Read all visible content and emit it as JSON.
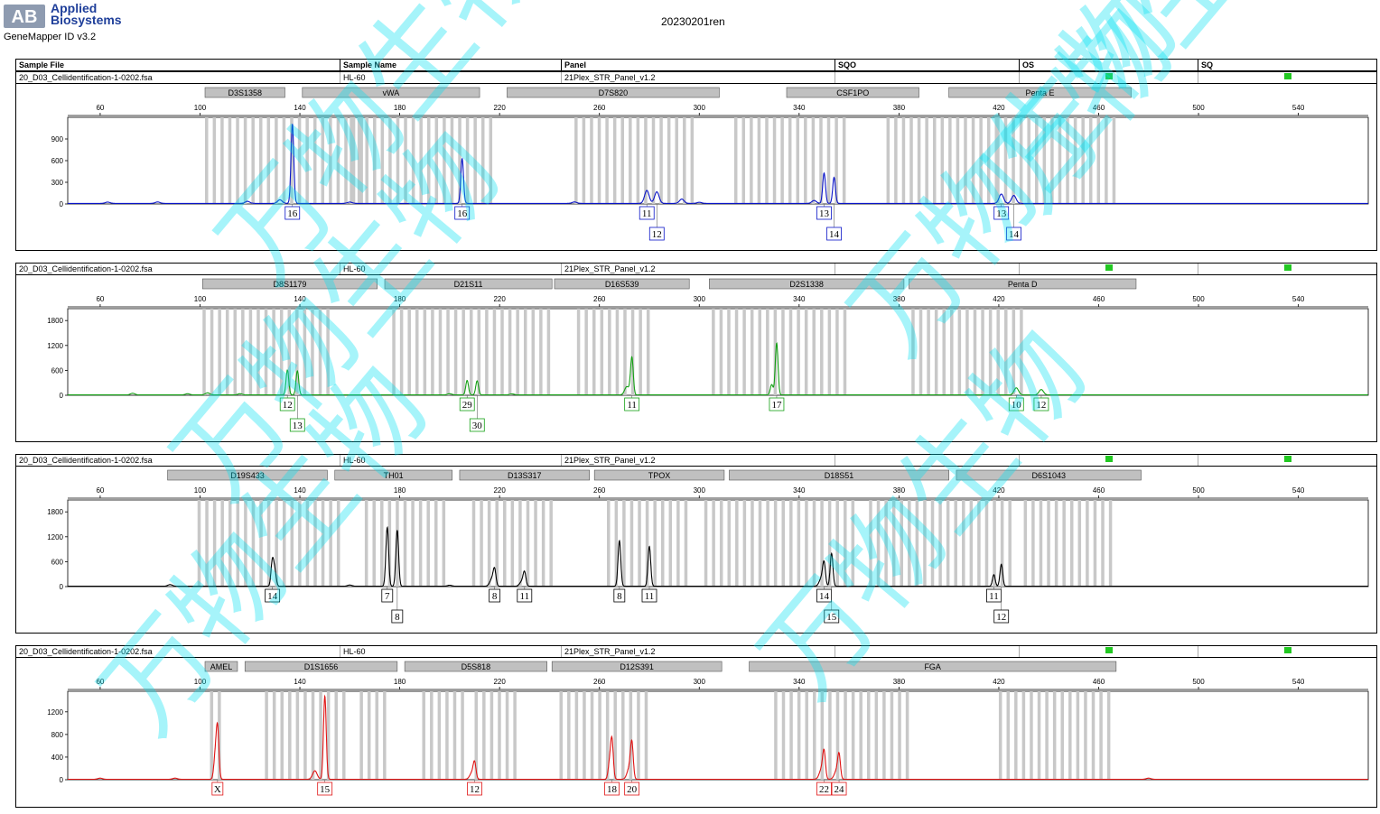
{
  "header": {
    "logo_text": "AB",
    "brand_line1": "Applied",
    "brand_line2": "Biosystems",
    "software": "GeneMapper ID v3.2",
    "project": "20230201ren"
  },
  "columns": [
    "Sample File",
    "Sample Name",
    "Panel",
    "SQO",
    "OS",
    "SQ"
  ],
  "watermark": "万物生物",
  "colors": {
    "quality_ok": "#22c822",
    "marker_bin": "#c8c8c8",
    "marker_label_bg": "#c0c0c0"
  },
  "chart_data": [
    {
      "type": "line",
      "dye": "blue",
      "color": "#0a14c8",
      "sample_file": "20_D03_Cellidentification-1-0202.fsa",
      "sample_name": "HL-60",
      "panel": "21Plex_STR_Panel_v1.2",
      "xlim": [
        47,
        568
      ],
      "x_ticks": [
        60,
        100,
        140,
        180,
        220,
        260,
        300,
        340,
        380,
        420,
        460,
        500,
        540
      ],
      "ylim": [
        0,
        1150
      ],
      "y_ticks": [
        0,
        300,
        600,
        900
      ],
      "markers": [
        {
          "name": "D3S1358",
          "start": 102,
          "end": 134
        },
        {
          "name": "vWA",
          "start": 141,
          "end": 212
        },
        {
          "name": "D7S820",
          "start": 223,
          "end": 308
        },
        {
          "name": "CSF1PO",
          "start": 335,
          "end": 388
        },
        {
          "name": "Penta E",
          "start": 400,
          "end": 473
        }
      ],
      "bin_ranges": [
        [
          102,
          164
        ],
        [
          160,
          218
        ],
        [
          250,
          298
        ],
        [
          314,
          358
        ],
        [
          375,
          419
        ],
        [
          419,
          467
        ]
      ],
      "peaks": [
        {
          "x": 137,
          "y": 1100,
          "label": "16"
        },
        {
          "x": 132,
          "y": 50
        },
        {
          "x": 205,
          "y": 620,
          "label": "16"
        },
        {
          "x": 279,
          "y": 180,
          "label": "11"
        },
        {
          "x": 283,
          "y": 160,
          "label": "12",
          "row": 2
        },
        {
          "x": 293,
          "y": 60
        },
        {
          "x": 350,
          "y": 420,
          "label": "13"
        },
        {
          "x": 354,
          "y": 360,
          "label": "14",
          "row": 2
        },
        {
          "x": 346,
          "y": 40
        },
        {
          "x": 421,
          "y": 130,
          "label": "13"
        },
        {
          "x": 426,
          "y": 110,
          "label": "14",
          "row": 2
        },
        {
          "x": 63,
          "y": 18
        },
        {
          "x": 160,
          "y": 18
        },
        {
          "x": 83,
          "y": 20
        },
        {
          "x": 119,
          "y": 28
        },
        {
          "x": 250,
          "y": 20
        },
        {
          "x": 300,
          "y": 15
        }
      ]
    },
    {
      "type": "line",
      "dye": "green",
      "color": "#14a014",
      "sample_file": "20_D03_Cellidentification-1-0202.fsa",
      "sample_name": "HL-60",
      "panel": "21Plex_STR_Panel_v1.2",
      "xlim": [
        47,
        568
      ],
      "x_ticks": [
        60,
        100,
        140,
        180,
        220,
        260,
        300,
        340,
        380,
        420,
        460,
        500,
        540
      ],
      "ylim": [
        0,
        2000
      ],
      "y_ticks": [
        0,
        600,
        1200,
        1800
      ],
      "markers": [
        {
          "name": "D8S1179",
          "start": 101,
          "end": 171
        },
        {
          "name": "D21S11",
          "start": 174,
          "end": 241
        },
        {
          "name": "D16S539",
          "start": 242,
          "end": 296
        },
        {
          "name": "D2S1338",
          "start": 304,
          "end": 382
        },
        {
          "name": "Penta D",
          "start": 384,
          "end": 475
        }
      ],
      "bin_ranges": [
        [
          101,
          152
        ],
        [
          177,
          241
        ],
        [
          251,
          279
        ],
        [
          305,
          360
        ],
        [
          385,
          431
        ]
      ],
      "peaks": [
        {
          "x": 135,
          "y": 600,
          "label": "12"
        },
        {
          "x": 139,
          "y": 580,
          "label": "13",
          "row": 2
        },
        {
          "x": 207,
          "y": 350,
          "label": "29"
        },
        {
          "x": 211,
          "y": 340,
          "label": "30",
          "row": 2
        },
        {
          "x": 273,
          "y": 900,
          "label": "11"
        },
        {
          "x": 271,
          "y": 200
        },
        {
          "x": 331,
          "y": 1250,
          "label": "17"
        },
        {
          "x": 329,
          "y": 250
        },
        {
          "x": 427,
          "y": 170,
          "label": "10"
        },
        {
          "x": 437,
          "y": 130,
          "label": "12"
        },
        {
          "x": 73,
          "y": 40
        },
        {
          "x": 95,
          "y": 30
        },
        {
          "x": 103,
          "y": 50
        },
        {
          "x": 116,
          "y": 30
        },
        {
          "x": 200,
          "y": 30
        },
        {
          "x": 225,
          "y": 25
        }
      ]
    },
    {
      "type": "line",
      "dye": "black",
      "color": "#000000",
      "sample_file": "20_D03_Cellidentification-1-0202.fsa",
      "sample_name": "HL-60",
      "panel": "21Plex_STR_Panel_v1.2",
      "xlim": [
        47,
        568
      ],
      "x_ticks": [
        60,
        100,
        140,
        180,
        220,
        260,
        300,
        340,
        380,
        420,
        460,
        500,
        540
      ],
      "ylim": [
        0,
        2000
      ],
      "y_ticks": [
        0,
        600,
        1200,
        1800
      ],
      "markers": [
        {
          "name": "D19S433",
          "start": 87,
          "end": 151
        },
        {
          "name": "TH01",
          "start": 154,
          "end": 201
        },
        {
          "name": "D13S317",
          "start": 204,
          "end": 256
        },
        {
          "name": "TPOX",
          "start": 258,
          "end": 310
        },
        {
          "name": "D18S51",
          "start": 312,
          "end": 400
        },
        {
          "name": "D6S1043",
          "start": 403,
          "end": 477
        }
      ],
      "bin_ranges": [
        [
          99,
          156
        ],
        [
          166,
          197
        ],
        [
          209,
          240
        ],
        [
          263,
          297
        ],
        [
          302,
          362
        ],
        [
          368,
          426
        ],
        [
          430,
          465
        ]
      ],
      "peaks": [
        {
          "x": 129,
          "y": 620,
          "label": "14"
        },
        {
          "x": 130,
          "y": 330
        },
        {
          "x": 175,
          "y": 1420,
          "label": "7"
        },
        {
          "x": 179,
          "y": 1350,
          "label": "8",
          "row": 2
        },
        {
          "x": 218,
          "y": 350,
          "label": "8"
        },
        {
          "x": 217,
          "y": 180
        },
        {
          "x": 230,
          "y": 300,
          "label": "11"
        },
        {
          "x": 229,
          "y": 120
        },
        {
          "x": 268,
          "y": 1100,
          "label": "8"
        },
        {
          "x": 280,
          "y": 960,
          "label": "11"
        },
        {
          "x": 350,
          "y": 500,
          "label": "14"
        },
        {
          "x": 353,
          "y": 790,
          "label": "15",
          "row": 2
        },
        {
          "x": 349,
          "y": 200
        },
        {
          "x": 418,
          "y": 280,
          "label": "11"
        },
        {
          "x": 421,
          "y": 530,
          "label": "12",
          "row": 2
        },
        {
          "x": 88,
          "y": 40
        },
        {
          "x": 160,
          "y": 30
        },
        {
          "x": 200,
          "y": 25
        }
      ]
    },
    {
      "type": "line",
      "dye": "red",
      "color": "#e01414",
      "sample_file": "20_D03_Cellidentification-1-0202.fsa",
      "sample_name": "HL-60",
      "panel": "21Plex_STR_Panel_v1.2",
      "xlim": [
        47,
        568
      ],
      "x_ticks": [
        60,
        100,
        140,
        180,
        220,
        260,
        300,
        340,
        380,
        420,
        460,
        500,
        540
      ],
      "ylim": [
        0,
        1500
      ],
      "y_ticks": [
        0,
        400,
        800,
        1200
      ],
      "markers": [
        {
          "name": "AMEL",
          "start": 102,
          "end": 115
        },
        {
          "name": "D1S1656",
          "start": 118,
          "end": 179
        },
        {
          "name": "D5S818",
          "start": 182,
          "end": 239
        },
        {
          "name": "D12S391",
          "start": 241,
          "end": 309
        },
        {
          "name": "FGA",
          "start": 320,
          "end": 467
        }
      ],
      "bin_ranges": [
        [
          104,
          110
        ],
        [
          126,
          160
        ],
        [
          164,
          174
        ],
        [
          189,
          207
        ],
        [
          210,
          228
        ],
        [
          244,
          281
        ],
        [
          330,
          384
        ],
        [
          420,
          464
        ]
      ],
      "peaks": [
        {
          "x": 107,
          "y": 920,
          "label": "X"
        },
        {
          "x": 106,
          "y": 350
        },
        {
          "x": 150,
          "y": 1470,
          "label": "15"
        },
        {
          "x": 146,
          "y": 150
        },
        {
          "x": 210,
          "y": 260,
          "label": "12"
        },
        {
          "x": 209,
          "y": 120
        },
        {
          "x": 265,
          "y": 700,
          "label": "18"
        },
        {
          "x": 264,
          "y": 250
        },
        {
          "x": 273,
          "y": 580,
          "label": "20"
        },
        {
          "x": 272,
          "y": 200
        },
        {
          "x": 350,
          "y": 430,
          "label": "22"
        },
        {
          "x": 349,
          "y": 180
        },
        {
          "x": 356,
          "y": 390,
          "label": "24"
        },
        {
          "x": 355,
          "y": 150
        },
        {
          "x": 60,
          "y": 20
        },
        {
          "x": 90,
          "y": 20
        },
        {
          "x": 480,
          "y": 20
        }
      ]
    }
  ]
}
